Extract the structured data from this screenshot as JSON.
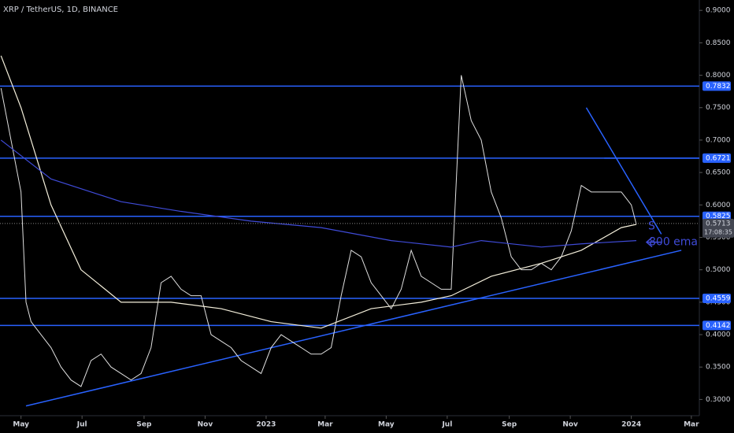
{
  "chart_data": {
    "type": "line",
    "title": "XRP / TetherUS, 1D, BINANCE",
    "xlim": [
      -21,
      678
    ],
    "ylim": [
      0.275,
      0.916
    ],
    "xticks": [
      {
        "value": 0,
        "label": "May"
      },
      {
        "value": 61,
        "label": "Jul"
      },
      {
        "value": 123,
        "label": "Sep"
      },
      {
        "value": 184,
        "label": "Nov"
      },
      {
        "value": 245,
        "label": "2023"
      },
      {
        "value": 304,
        "label": "Mar"
      },
      {
        "value": 365,
        "label": "May"
      },
      {
        "value": 426,
        "label": "Jul"
      },
      {
        "value": 488,
        "label": "Sep"
      },
      {
        "value": 549,
        "label": "Nov"
      },
      {
        "value": 610,
        "label": "2024"
      },
      {
        "value": 670,
        "label": "Mar"
      }
    ],
    "yticks": [
      {
        "value": 0.3,
        "label": "0.3000"
      },
      {
        "value": 0.35,
        "label": "0.3500"
      },
      {
        "value": 0.4,
        "label": "0.4000"
      },
      {
        "value": 0.45,
        "label": "0.4500"
      },
      {
        "value": 0.5,
        "label": "0.5000"
      },
      {
        "value": 0.55,
        "label": "0.5500"
      },
      {
        "value": 0.6,
        "label": "0.6000"
      },
      {
        "value": 0.65,
        "label": "0.6500"
      },
      {
        "value": 0.7,
        "label": "0.7000"
      },
      {
        "value": 0.75,
        "label": "0.7500"
      },
      {
        "value": 0.8,
        "label": "0.8000"
      },
      {
        "value": 0.85,
        "label": "0.8500"
      },
      {
        "value": 0.9,
        "label": "0.9000"
      }
    ],
    "series": [
      {
        "color": "#e0e0e0",
        "x": [
          -20,
          -10,
          0,
          5,
          10,
          20,
          30,
          40,
          50,
          60,
          70,
          80,
          90,
          100,
          110,
          120,
          130,
          140,
          150,
          160,
          170,
          180,
          190,
          200,
          210,
          220,
          230,
          240,
          250,
          260,
          270,
          280,
          290,
          300,
          310,
          320,
          330,
          340,
          350,
          360,
          370,
          380,
          390,
          400,
          410,
          420,
          430,
          440,
          450,
          460,
          470,
          480,
          490,
          500,
          510,
          520,
          530,
          540,
          550,
          560,
          570,
          580,
          590,
          600,
          610,
          615
        ],
        "values": [
          0.78,
          0.7,
          0.62,
          0.45,
          0.42,
          0.4,
          0.38,
          0.35,
          0.33,
          0.32,
          0.36,
          0.37,
          0.35,
          0.34,
          0.33,
          0.34,
          0.38,
          0.48,
          0.49,
          0.47,
          0.46,
          0.46,
          0.4,
          0.39,
          0.38,
          0.36,
          0.35,
          0.34,
          0.38,
          0.4,
          0.39,
          0.38,
          0.37,
          0.37,
          0.38,
          0.46,
          0.53,
          0.52,
          0.48,
          0.46,
          0.44,
          0.47,
          0.53,
          0.49,
          0.48,
          0.47,
          0.47,
          0.8,
          0.73,
          0.7,
          0.62,
          0.58,
          0.52,
          0.5,
          0.5,
          0.51,
          0.5,
          0.52,
          0.56,
          0.63,
          0.62,
          0.62,
          0.62,
          0.62,
          0.6,
          0.57
        ]
      },
      {
        "color": "#f5f0dc",
        "x": [
          -20,
          0,
          30,
          60,
          100,
          150,
          200,
          250,
          300,
          350,
          400,
          430,
          470,
          520,
          560,
          600,
          615
        ],
        "values": [
          0.83,
          0.75,
          0.6,
          0.5,
          0.45,
          0.45,
          0.44,
          0.42,
          0.41,
          0.44,
          0.45,
          0.46,
          0.49,
          0.51,
          0.53,
          0.565,
          0.57
        ]
      },
      {
        "name": "800 ema",
        "color": "#3f4bd8",
        "x": [
          -20,
          30,
          100,
          160,
          230,
          300,
          370,
          430,
          460,
          520,
          560,
          615
        ],
        "values": [
          0.7,
          0.64,
          0.605,
          0.59,
          0.575,
          0.565,
          0.545,
          0.535,
          0.545,
          0.535,
          0.54,
          0.545
        ]
      }
    ],
    "levels": [
      0.7832,
      0.6721,
      0.5825,
      0.4559,
      0.4142
    ],
    "level_color": "#2962ff",
    "trendlines": [
      {
        "x": [
          5,
          660
        ],
        "y": [
          0.29,
          0.53
        ]
      },
      {
        "x": [
          565,
          640
        ],
        "y": [
          0.75,
          0.555
        ]
      },
      {
        "x": [
          583,
          678
        ],
        "y": [
          0.6721,
          0.6721
        ]
      }
    ],
    "last_price": 0.5713,
    "countdown": "17:08:35",
    "annotation": "S"
  }
}
